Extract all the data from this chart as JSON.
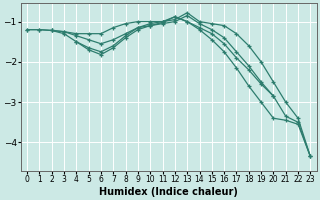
{
  "title": "",
  "xlabel": "Humidex (Indice chaleur)",
  "background_color": "#cce9e5",
  "line_color": "#2d7d6e",
  "grid_color": "#ffffff",
  "xlim": [
    -0.5,
    23.5
  ],
  "ylim": [
    -4.7,
    -0.55
  ],
  "yticks": [
    -4,
    -3,
    -2,
    -1
  ],
  "xticks": [
    0,
    1,
    2,
    3,
    4,
    5,
    6,
    7,
    8,
    9,
    10,
    11,
    12,
    13,
    14,
    15,
    16,
    17,
    18,
    19,
    20,
    21,
    22,
    23
  ],
  "lines": [
    {
      "x": [
        0,
        1,
        2,
        3,
        4,
        5,
        6,
        7,
        8,
        9,
        10,
        11,
        12,
        13,
        14,
        15,
        16,
        17,
        18,
        19,
        20,
        21,
        22,
        23
      ],
      "y": [
        -1.2,
        -1.2,
        -1.22,
        -1.25,
        -1.3,
        -1.3,
        -1.3,
        -1.15,
        -1.05,
        -1.0,
        -1.0,
        -1.0,
        -0.95,
        -0.78,
        -1.0,
        -1.05,
        -1.1,
        -1.3,
        -1.6,
        -2.0,
        -2.5,
        -3.0,
        -3.4,
        -4.35
      ]
    },
    {
      "x": [
        0,
        1,
        2,
        3,
        4,
        5,
        6,
        7,
        8,
        9,
        10,
        11,
        12,
        13,
        14,
        15,
        16,
        17,
        18,
        19,
        20,
        21,
        22,
        23
      ],
      "y": [
        -1.2,
        -1.2,
        -1.22,
        -1.25,
        -1.35,
        -1.45,
        -1.55,
        -1.45,
        -1.3,
        -1.15,
        -1.1,
        -1.05,
        -1.0,
        -0.85,
        -1.05,
        -1.2,
        -1.4,
        -1.75,
        -2.1,
        -2.5,
        -2.85,
        -3.35,
        -3.5,
        -4.35
      ]
    },
    {
      "x": [
        2,
        3,
        4,
        5,
        6,
        7,
        8,
        9,
        10,
        11,
        12,
        13,
        14,
        15,
        16,
        17,
        18,
        19,
        20
      ],
      "y": [
        -1.22,
        -1.3,
        -1.5,
        -1.65,
        -1.75,
        -1.6,
        -1.35,
        -1.15,
        -1.05,
        -1.0,
        -0.88,
        -1.0,
        -1.15,
        -1.3,
        -1.55,
        -1.9,
        -2.2,
        -2.55,
        -2.85
      ]
    },
    {
      "x": [
        4,
        5,
        6,
        7,
        8,
        9,
        10,
        11,
        12,
        13,
        14,
        15,
        16,
        17,
        18,
        19,
        20,
        21,
        22,
        23
      ],
      "y": [
        -1.5,
        -1.7,
        -1.82,
        -1.65,
        -1.4,
        -1.2,
        -1.1,
        -1.02,
        -0.88,
        -1.0,
        -1.2,
        -1.45,
        -1.75,
        -2.15,
        -2.6,
        -3.0,
        -3.4,
        -3.45,
        -3.55,
        -4.35
      ]
    }
  ]
}
